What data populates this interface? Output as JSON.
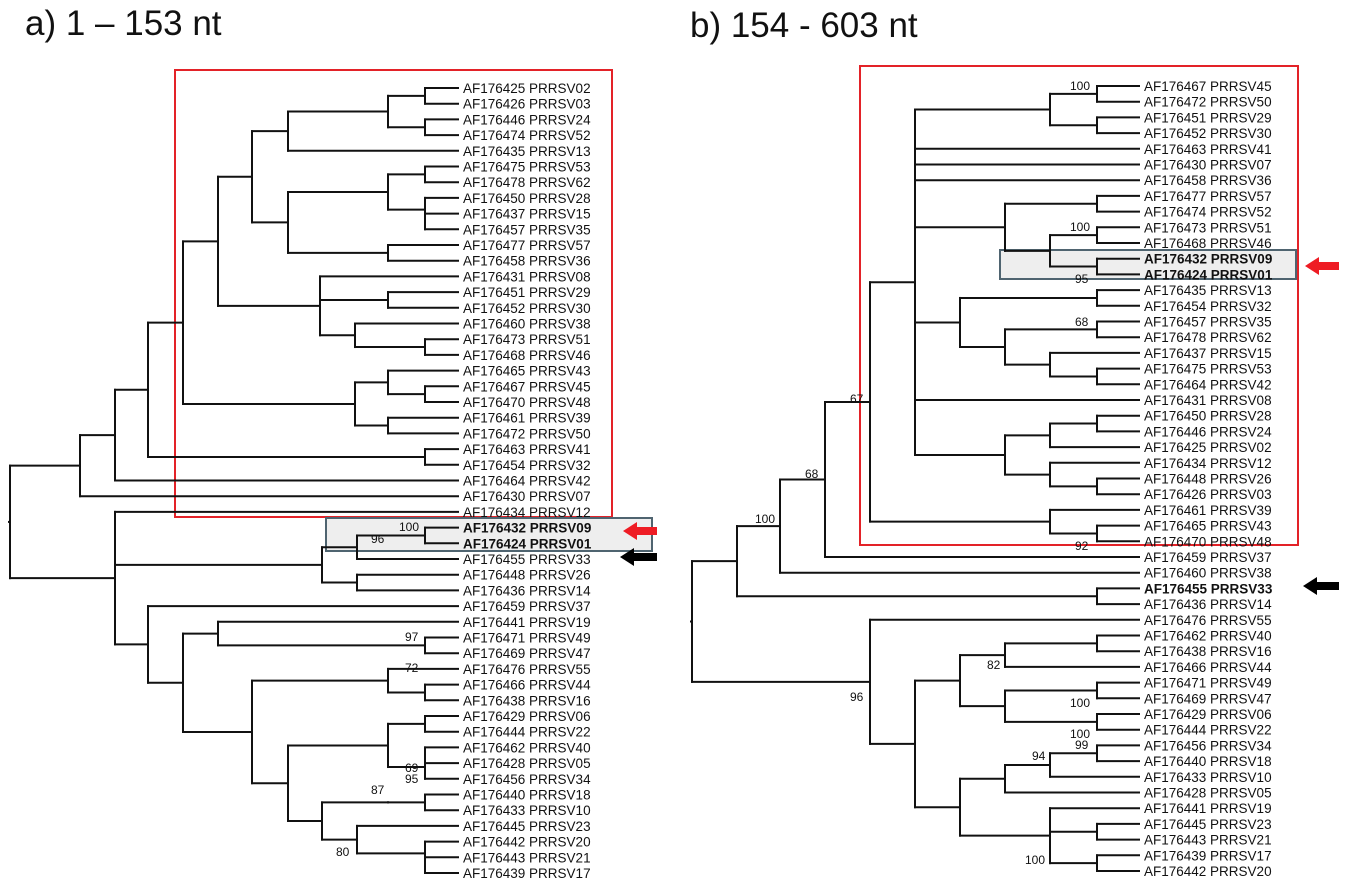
{
  "panels": [
    {
      "id": "a",
      "title": "a) 1 – 153 nt",
      "leaves": [
        {
          "label": "AF176425 PRRSV02"
        },
        {
          "label": "AF176426 PRRSV03"
        },
        {
          "label": "AF176446 PRRSV24"
        },
        {
          "label": "AF176474 PRRSV52"
        },
        {
          "label": "AF176435 PRRSV13"
        },
        {
          "label": "AF176475 PRRSV53"
        },
        {
          "label": "AF176478 PRRSV62"
        },
        {
          "label": "AF176450 PRRSV28"
        },
        {
          "label": "AF176437 PRRSV15"
        },
        {
          "label": "AF176457 PRRSV35"
        },
        {
          "label": "AF176477 PRRSV57"
        },
        {
          "label": "AF176458 PRRSV36"
        },
        {
          "label": "AF176431 PRRSV08"
        },
        {
          "label": "AF176451 PRRSV29"
        },
        {
          "label": "AF176452 PRRSV30"
        },
        {
          "label": "AF176460 PRRSV38"
        },
        {
          "label": "AF176473 PRRSV51"
        },
        {
          "label": "AF176468 PRRSV46"
        },
        {
          "label": "AF176465 PRRSV43"
        },
        {
          "label": "AF176467 PRRSV45"
        },
        {
          "label": "AF176470 PRRSV48"
        },
        {
          "label": "AF176461 PRRSV39"
        },
        {
          "label": "AF176472 PRRSV50"
        },
        {
          "label": "AF176463 PRRSV41"
        },
        {
          "label": "AF176454 PRRSV32"
        },
        {
          "label": "AF176464 PRRSV42"
        },
        {
          "label": "AF176430 PRRSV07"
        },
        {
          "label": "AF176434 PRRSV12"
        },
        {
          "label": "AF176432 PRRSV09",
          "bold": true
        },
        {
          "label": "AF176424 PRRSV01",
          "bold": true
        },
        {
          "label": "AF176455 PRRSV33"
        },
        {
          "label": "AF176448 PRRSV26"
        },
        {
          "label": "AF176436 PRRSV14"
        },
        {
          "label": "AF176459 PRRSV37"
        },
        {
          "label": "AF176441 PRRSV19"
        },
        {
          "label": "AF176471 PRRSV49"
        },
        {
          "label": "AF176469 PRRSV47"
        },
        {
          "label": "AF176476 PRRSV55"
        },
        {
          "label": "AF176466 PRRSV44"
        },
        {
          "label": "AF176438 PRRSV16"
        },
        {
          "label": "AF176429 PRRSV06"
        },
        {
          "label": "AF176444 PRRSV22"
        },
        {
          "label": "AF176462 PRRSV40"
        },
        {
          "label": "AF176428 PRRSV05"
        },
        {
          "label": "AF176456 PRRSV34"
        },
        {
          "label": "AF176440 PRRSV18"
        },
        {
          "label": "AF176433 PRRSV10"
        },
        {
          "label": "AF176445 PRRSV23"
        },
        {
          "label": "AF176442 PRRSV20"
        },
        {
          "label": "AF176443 PRRSV21"
        },
        {
          "label": "AF176439 PRRSV17"
        }
      ],
      "bootstrap": [
        "100",
        "96",
        "97",
        "72",
        "69",
        "95",
        "87",
        "80"
      ],
      "arrows": [
        "red",
        "black"
      ]
    },
    {
      "id": "b",
      "title": "b) 154 -  603 nt",
      "leaves": [
        {
          "label": "AF176467 PRRSV45"
        },
        {
          "label": "AF176472 PRRSV50"
        },
        {
          "label": "AF176451 PRRSV29"
        },
        {
          "label": "AF176452 PRRSV30"
        },
        {
          "label": "AF176463 PRRSV41"
        },
        {
          "label": "AF176430 PRRSV07"
        },
        {
          "label": "AF176458 PRRSV36"
        },
        {
          "label": "AF176477 PRRSV57"
        },
        {
          "label": "AF176474 PRRSV52"
        },
        {
          "label": "AF176473 PRRSV51"
        },
        {
          "label": "AF176468 PRRSV46"
        },
        {
          "label": "AF176432 PRRSV09",
          "bold": true
        },
        {
          "label": "AF176424 PRRSV01",
          "bold": true
        },
        {
          "label": "AF176435 PRRSV13"
        },
        {
          "label": "AF176454 PRRSV32"
        },
        {
          "label": "AF176457 PRRSV35"
        },
        {
          "label": "AF176478 PRRSV62"
        },
        {
          "label": "AF176437 PRRSV15"
        },
        {
          "label": "AF176475 PRRSV53"
        },
        {
          "label": "AF176464 PRRSV42"
        },
        {
          "label": "AF176431 PRRSV08"
        },
        {
          "label": "AF176450 PRRSV28"
        },
        {
          "label": "AF176446 PRRSV24"
        },
        {
          "label": "AF176425 PRRSV02"
        },
        {
          "label": "AF176434 PRRSV12"
        },
        {
          "label": "AF176448 PRRSV26"
        },
        {
          "label": "AF176426 PRRSV03"
        },
        {
          "label": "AF176461 PRRSV39"
        },
        {
          "label": "AF176465 PRRSV43"
        },
        {
          "label": "AF176470 PRRSV48"
        },
        {
          "label": "AF176459 PRRSV37"
        },
        {
          "label": "AF176460 PRRSV38"
        },
        {
          "label": "AF176455 PRRSV33",
          "bold": true
        },
        {
          "label": "AF176436 PRRSV14"
        },
        {
          "label": "AF176476 PRRSV55"
        },
        {
          "label": "AF176462 PRRSV40"
        },
        {
          "label": "AF176438 PRRSV16"
        },
        {
          "label": "AF176466 PRRSV44"
        },
        {
          "label": "AF176471 PRRSV49"
        },
        {
          "label": "AF176469 PRRSV47"
        },
        {
          "label": "AF176429 PRRSV06"
        },
        {
          "label": "AF176444 PRRSV22"
        },
        {
          "label": "AF176456 PRRSV34"
        },
        {
          "label": "AF176440 PRRSV18"
        },
        {
          "label": "AF176433 PRRSV10"
        },
        {
          "label": "AF176428 PRRSV05"
        },
        {
          "label": "AF176441 PRRSV19"
        },
        {
          "label": "AF176445 PRRSV23"
        },
        {
          "label": "AF176443 PRRSV21"
        },
        {
          "label": "AF176439 PRRSV17"
        },
        {
          "label": "AF176442 PRRSV20"
        }
      ],
      "bootstrap": [
        "100",
        "100",
        "95",
        "68",
        "67",
        "68",
        "100",
        "92",
        "82",
        "100",
        "100",
        "99",
        "94",
        "96",
        "100"
      ],
      "arrows": [
        "red",
        "black"
      ]
    }
  ],
  "colors": {
    "branch": "#111111",
    "red_box": "#e32228",
    "grey_box_border": "#4f6470",
    "grey_box_fill": "#eeeeee",
    "red_arrow": "#ee1c24",
    "black_arrow": "#000000"
  }
}
